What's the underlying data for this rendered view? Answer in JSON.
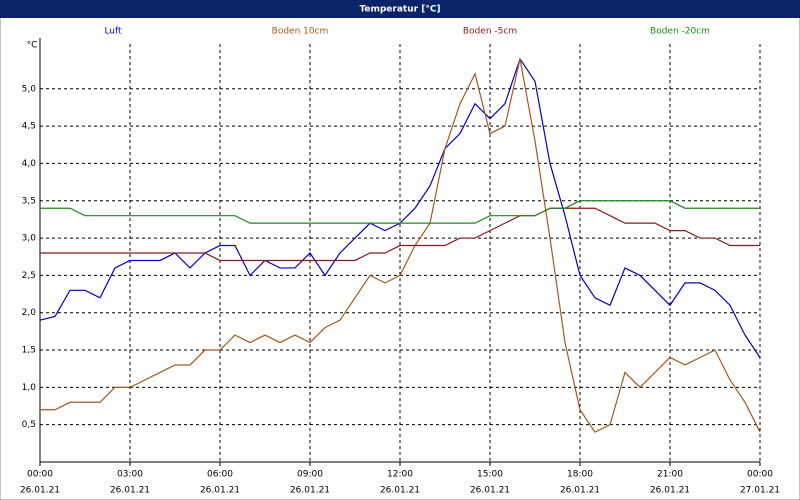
{
  "chart_data": {
    "type": "line",
    "title": "Temperatur [°C]",
    "y_label": "°C",
    "x": [
      0,
      0.5,
      1,
      1.5,
      2,
      2.5,
      3,
      3.5,
      4,
      4.5,
      5,
      5.5,
      6,
      6.5,
      7,
      7.5,
      8,
      8.5,
      9,
      9.5,
      10,
      10.5,
      11,
      11.5,
      12,
      12.5,
      13,
      13.5,
      14,
      14.5,
      15,
      15.5,
      16,
      16.5,
      17,
      17.5,
      18,
      18.5,
      19,
      19.5,
      20,
      20.5,
      21,
      21.5,
      22,
      22.5,
      23,
      23.5,
      24
    ],
    "series": [
      {
        "name": "Luft",
        "color": "#0000cc",
        "values": [
          1.9,
          1.95,
          2.3,
          2.3,
          2.2,
          2.6,
          2.7,
          2.7,
          2.7,
          2.8,
          2.6,
          2.8,
          2.9,
          2.9,
          2.5,
          2.7,
          2.6,
          2.6,
          2.8,
          2.5,
          2.8,
          3.0,
          3.2,
          3.1,
          3.2,
          3.4,
          3.7,
          4.2,
          4.4,
          4.8,
          4.6,
          4.8,
          5.4,
          5.1,
          4.0,
          3.3,
          2.5,
          2.2,
          2.1,
          2.6,
          2.5,
          2.3,
          2.1,
          2.4,
          2.4,
          2.3,
          2.1,
          1.7,
          1.4
        ]
      },
      {
        "name": "Boden 10cm",
        "color": "#a8581c",
        "values": [
          0.7,
          0.7,
          0.8,
          0.8,
          0.8,
          1.0,
          1.0,
          1.1,
          1.2,
          1.3,
          1.3,
          1.5,
          1.5,
          1.7,
          1.6,
          1.7,
          1.6,
          1.7,
          1.6,
          1.8,
          1.9,
          2.2,
          2.5,
          2.4,
          2.5,
          2.9,
          3.2,
          4.2,
          4.8,
          5.2,
          4.4,
          4.5,
          5.4,
          4.3,
          3.0,
          1.6,
          0.7,
          0.4,
          0.5,
          1.2,
          1.0,
          1.2,
          1.4,
          1.3,
          1.4,
          1.5,
          1.1,
          0.8,
          0.4
        ]
      },
      {
        "name": "Boden -5cm",
        "color": "#8b1a1a",
        "values": [
          2.8,
          2.8,
          2.8,
          2.8,
          2.8,
          2.8,
          2.8,
          2.8,
          2.8,
          2.8,
          2.8,
          2.8,
          2.7,
          2.7,
          2.7,
          2.7,
          2.7,
          2.7,
          2.7,
          2.7,
          2.7,
          2.7,
          2.8,
          2.8,
          2.9,
          2.9,
          2.9,
          2.9,
          3.0,
          3.0,
          3.1,
          3.2,
          3.3,
          3.3,
          3.4,
          3.4,
          3.4,
          3.4,
          3.3,
          3.2,
          3.2,
          3.2,
          3.1,
          3.1,
          3.0,
          3.0,
          2.9,
          2.9,
          2.9
        ]
      },
      {
        "name": "Boden -20cm",
        "color": "#1a8a1a",
        "values": [
          3.4,
          3.4,
          3.4,
          3.3,
          3.3,
          3.3,
          3.3,
          3.3,
          3.3,
          3.3,
          3.3,
          3.3,
          3.3,
          3.3,
          3.2,
          3.2,
          3.2,
          3.2,
          3.2,
          3.2,
          3.2,
          3.2,
          3.2,
          3.2,
          3.2,
          3.2,
          3.2,
          3.2,
          3.2,
          3.2,
          3.3,
          3.3,
          3.3,
          3.3,
          3.4,
          3.4,
          3.5,
          3.5,
          3.5,
          3.5,
          3.5,
          3.5,
          3.5,
          3.4,
          3.4,
          3.4,
          3.4,
          3.4,
          3.4
        ]
      }
    ],
    "xlim": [
      0,
      24
    ],
    "xticks": [
      {
        "value": 0,
        "label": "00:00"
      },
      {
        "value": 3,
        "label": "03:00"
      },
      {
        "value": 6,
        "label": "06:00"
      },
      {
        "value": 9,
        "label": "09:00"
      },
      {
        "value": 12,
        "label": "12:00"
      },
      {
        "value": 15,
        "label": "15:00"
      },
      {
        "value": 18,
        "label": "18:00"
      },
      {
        "value": 21,
        "label": "21:00"
      },
      {
        "value": 24,
        "label": "00:00"
      }
    ],
    "xtick_dates": [
      "26.01.21",
      "26.01.21",
      "26.01.21",
      "26.01.21",
      "26.01.21",
      "26.01.21",
      "26.01.21",
      "26.01.21",
      "27.01.21"
    ],
    "ylim": [
      0,
      5.6
    ],
    "yticks": [
      {
        "value": 0.5,
        "label": "0,5"
      },
      {
        "value": 1,
        "label": "1,0"
      },
      {
        "value": 1.5,
        "label": "1,5"
      },
      {
        "value": 2,
        "label": "2,0"
      },
      {
        "value": 2.5,
        "label": "2,5"
      },
      {
        "value": 3,
        "label": "3,0"
      },
      {
        "value": 3.5,
        "label": "3,5"
      },
      {
        "value": 4,
        "label": "4,0"
      },
      {
        "value": 4.5,
        "label": "4,5"
      },
      {
        "value": 5,
        "label": "5,0"
      }
    ],
    "grid": true
  }
}
